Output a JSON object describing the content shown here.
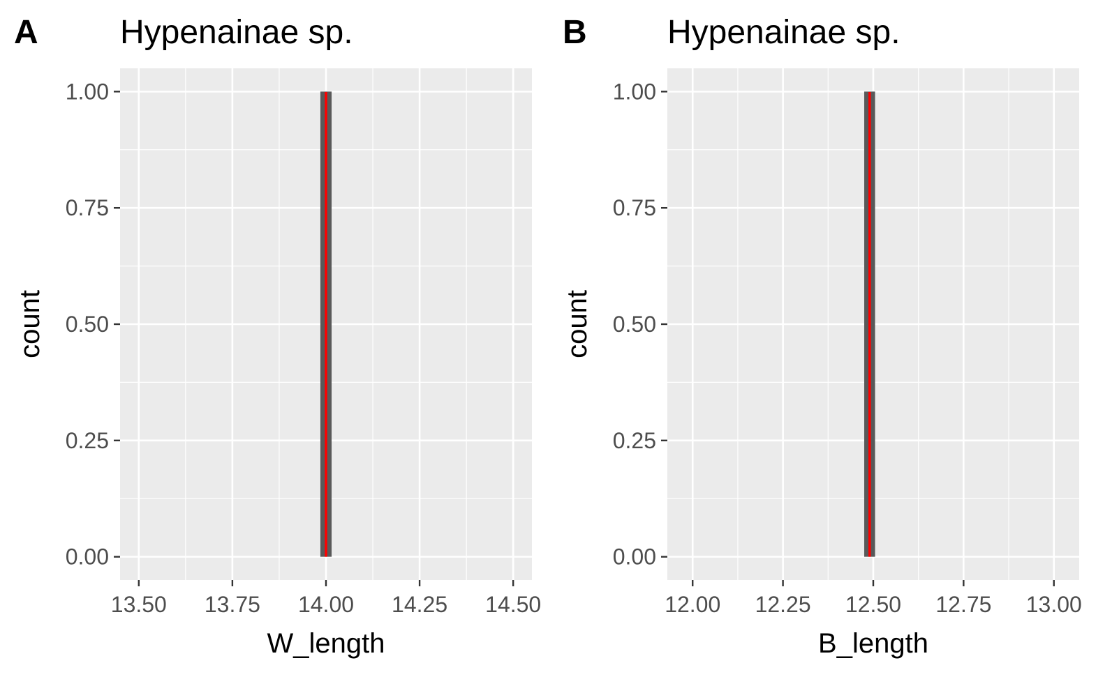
{
  "chart_data": [
    {
      "type": "bar",
      "panel": "A",
      "title": "Hypenainae sp.",
      "xlabel": "W_length",
      "ylabel": "count",
      "xlim": [
        13.45,
        14.55
      ],
      "ylim": [
        -0.05,
        1.05
      ],
      "xticks": [
        13.5,
        13.75,
        14.0,
        14.25,
        14.5
      ],
      "xtick_labels": [
        "13.50",
        "13.75",
        "14.00",
        "14.25",
        "14.50"
      ],
      "yticks": [
        0,
        0.25,
        0.5,
        0.75,
        1.0
      ],
      "ytick_labels": [
        "0.00",
        "0.25",
        "0.50",
        "0.75",
        "1.00"
      ],
      "bars": [
        {
          "x": 14.0,
          "count": 1,
          "width": 0.03
        }
      ],
      "vline": {
        "x": 14.0,
        "color": "#ff0000"
      },
      "grid": true,
      "background": "#ebebeb",
      "bar_color": "#595959"
    },
    {
      "type": "bar",
      "panel": "B",
      "title": "Hypenainae sp.",
      "xlabel": "B_length",
      "ylabel": "count",
      "xlim": [
        11.93,
        13.07
      ],
      "ylim": [
        -0.05,
        1.05
      ],
      "xticks": [
        12.0,
        12.25,
        12.5,
        12.75,
        13.0
      ],
      "xtick_labels": [
        "12.00",
        "12.25",
        "12.50",
        "12.75",
        "13.00"
      ],
      "yticks": [
        0,
        0.25,
        0.5,
        0.75,
        1.0
      ],
      "ytick_labels": [
        "0.00",
        "0.25",
        "0.50",
        "0.75",
        "1.00"
      ],
      "bars": [
        {
          "x": 12.49,
          "count": 1,
          "width": 0.03
        }
      ],
      "vline": {
        "x": 12.49,
        "color": "#ff0000"
      },
      "grid": true,
      "background": "#ebebeb",
      "bar_color": "#595959"
    }
  ]
}
